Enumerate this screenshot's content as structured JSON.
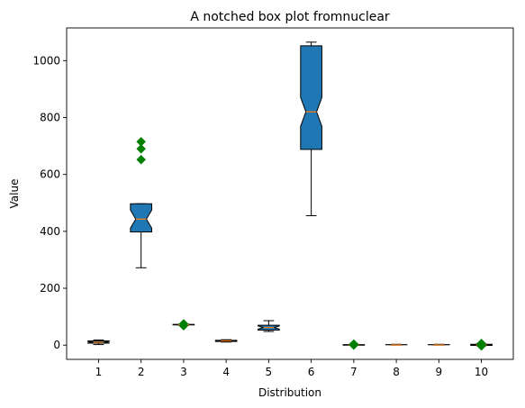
{
  "chart_data": {
    "type": "box",
    "title": "A notched box plot fromnuclear",
    "xlabel": "Distribution",
    "ylabel": "Value",
    "ylim": [
      -50,
      1115
    ],
    "yticks": [
      0,
      200,
      400,
      600,
      800,
      1000
    ],
    "grid": false,
    "notched": true,
    "colors": {
      "box_fill": "#1f77b4",
      "median": "#ff7f0e",
      "outlier": "#008000",
      "whisker": "#000000"
    },
    "categories": [
      "1",
      "2",
      "3",
      "4",
      "5",
      "6",
      "7",
      "8",
      "9",
      "10"
    ],
    "boxes": [
      {
        "label": "1",
        "whislo": 2,
        "q1": 7,
        "med": 10,
        "q3": 15,
        "whishi": 18,
        "fliers": []
      },
      {
        "label": "2",
        "whislo": 272,
        "q1": 398,
        "med": 443,
        "q3": 497,
        "whishi": 497,
        "fliers": [
          652,
          690,
          715
        ]
      },
      {
        "label": "3",
        "whislo": 70,
        "q1": 71,
        "med": 72,
        "q3": 73,
        "whishi": 74,
        "fliers": [
          68,
          75
        ]
      },
      {
        "label": "4",
        "whislo": 11,
        "q1": 13,
        "med": 15,
        "q3": 17,
        "whishi": 19,
        "fliers": []
      },
      {
        "label": "5",
        "whislo": 48,
        "q1": 53,
        "med": 62,
        "q3": 70,
        "whishi": 86,
        "fliers": []
      },
      {
        "label": "6",
        "whislo": 455,
        "q1": 688,
        "med": 820,
        "q3": 1052,
        "whishi": 1065,
        "fliers": []
      },
      {
        "label": "7",
        "whislo": 0,
        "q1": 0,
        "med": 1,
        "q3": 2,
        "whishi": 3,
        "fliers": [
          0,
          2,
          4
        ]
      },
      {
        "label": "8",
        "whislo": 0,
        "q1": 1,
        "med": 1,
        "q3": 2,
        "whishi": 3,
        "fliers": []
      },
      {
        "label": "9",
        "whislo": 0,
        "q1": 1,
        "med": 1,
        "q3": 2,
        "whishi": 3,
        "fliers": []
      },
      {
        "label": "10",
        "whislo": -2,
        "q1": -1,
        "med": 1,
        "q3": 3,
        "whishi": 4,
        "fliers": [
          -3,
          2,
          6
        ]
      }
    ]
  }
}
